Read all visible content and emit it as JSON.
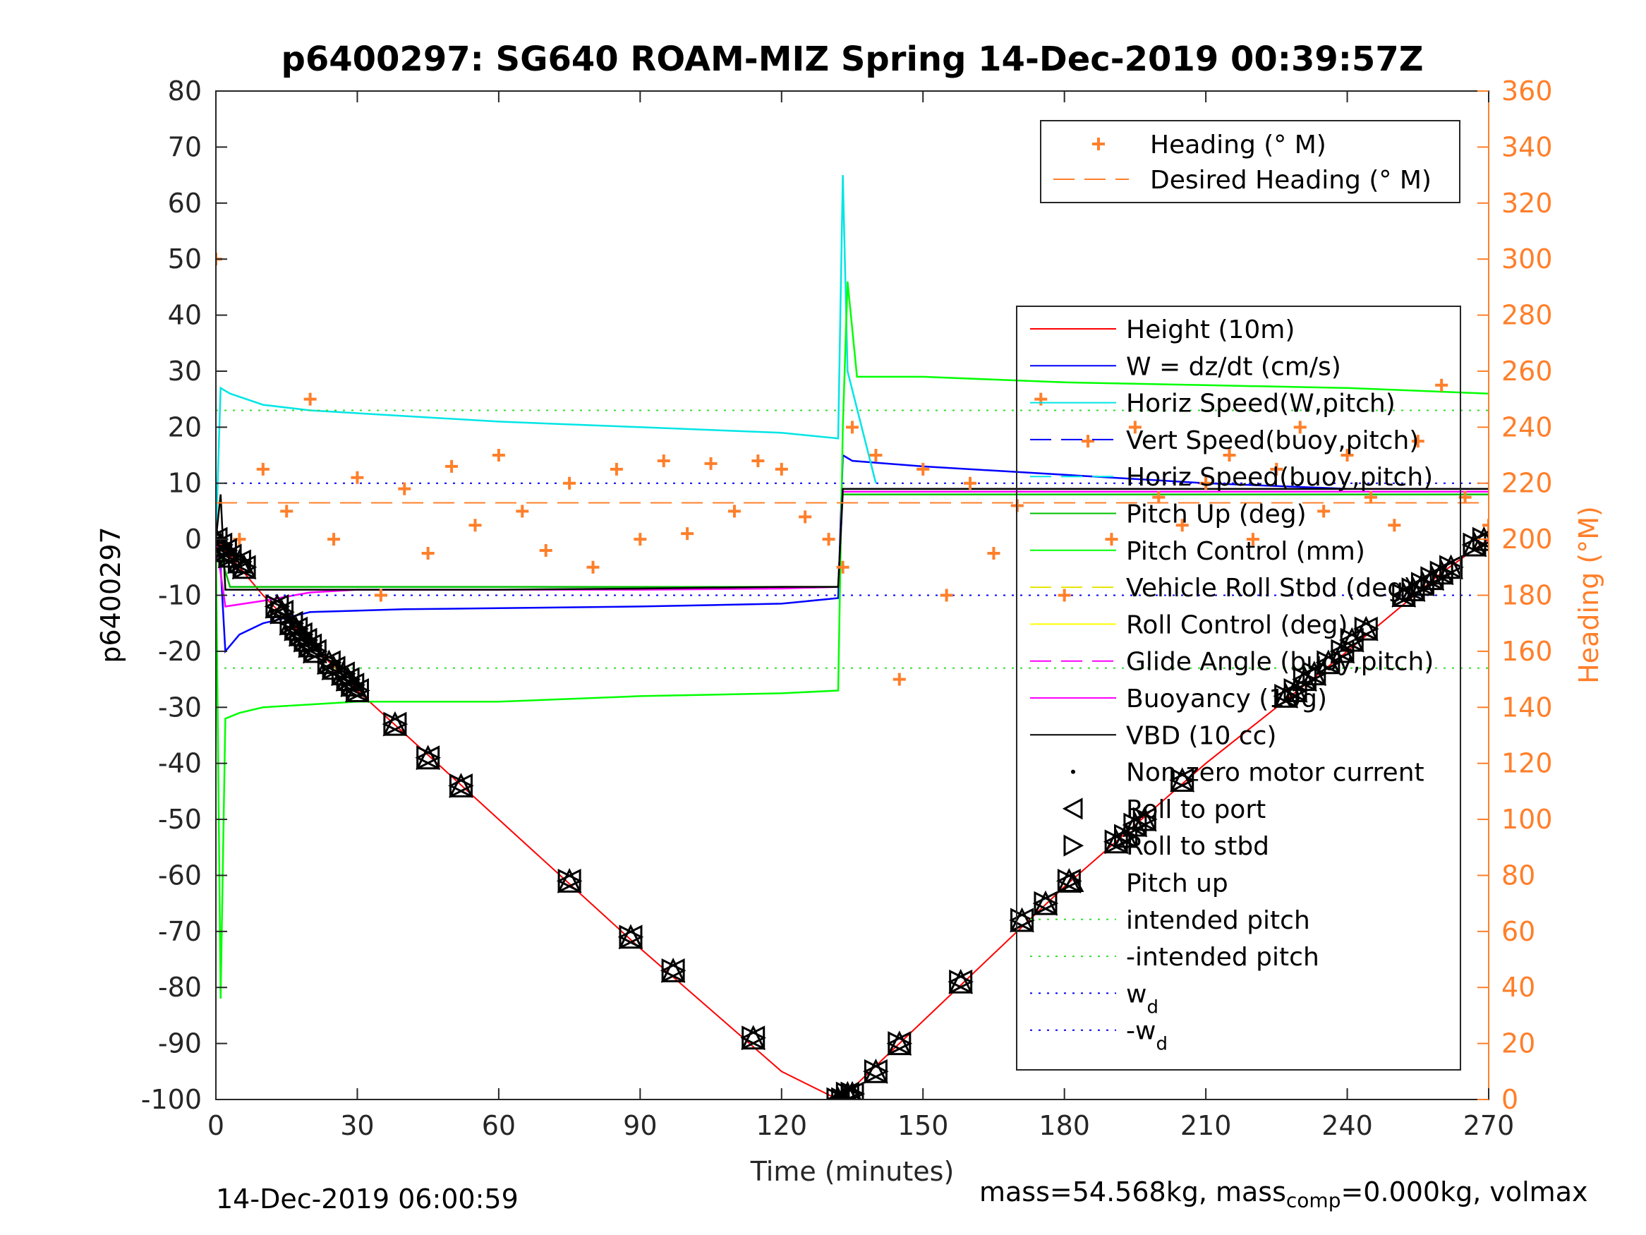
{
  "chart_data": {
    "type": "line",
    "title": "p6400297: SG640 ROAM-MIZ Spring 14-Dec-2019 00:39:57Z",
    "xlabel": "Time (minutes)",
    "ylabel_left": "p6400297",
    "ylabel_right": "Heading (°M)",
    "xlim": [
      0,
      270
    ],
    "ylim_left": [
      -100,
      80
    ],
    "ylim_right": [
      0,
      360
    ],
    "xticks": [
      "0",
      "30",
      "60",
      "90",
      "120",
      "150",
      "180",
      "210",
      "240",
      "270"
    ],
    "yticks_left": [
      "80",
      "70",
      "60",
      "50",
      "40",
      "30",
      "20",
      "10",
      "0",
      "-10",
      "-20",
      "-30",
      "-40",
      "-50",
      "-60",
      "-70",
      "-80",
      "-90",
      "-100"
    ],
    "yticks_right": [
      "360",
      "340",
      "320",
      "300",
      "280",
      "260",
      "240",
      "220",
      "200",
      "180",
      "160",
      "140",
      "120",
      "100",
      "80",
      "60",
      "40",
      "20",
      "0"
    ],
    "grid": false,
    "legend_heading": {
      "placement": "top-right",
      "entries": [
        {
          "label": "Heading (° M)",
          "color": "#ff7f2a",
          "style": "plus"
        },
        {
          "label": "Desired Heading (° M)",
          "color": "#ff7f2a",
          "style": "dashed"
        }
      ]
    },
    "legend_main": {
      "placement": "right",
      "entries": [
        {
          "label": "Height (10m)",
          "color": "#ff0000",
          "style": "solid"
        },
        {
          "label": "W = dz/dt (cm/s)",
          "color": "#0000ff",
          "style": "solid"
        },
        {
          "label": "Horiz Speed(W,pitch)",
          "color": "#00e5e5",
          "style": "solid"
        },
        {
          "label": "Vert Speed(buoy,pitch)",
          "color": "#0000ff",
          "style": "dashed"
        },
        {
          "label": "Horiz Speed(buoy,pitch)",
          "color": "#00e5e5",
          "style": "dashed"
        },
        {
          "label": "Pitch Up (deg)",
          "color": "#00c000",
          "style": "solid"
        },
        {
          "label": "Pitch Control (mm)",
          "color": "#00ff00",
          "style": "solid"
        },
        {
          "label": "Vehicle Roll Stbd (deg)",
          "color": "#e5e500",
          "style": "dashed"
        },
        {
          "label": "Roll Control (deg)",
          "color": "#ffff00",
          "style": "solid"
        },
        {
          "label": "Glide Angle (buoy,pitch)",
          "color": "#ff00ff",
          "style": "dashed"
        },
        {
          "label": "Buoyancy (10g)",
          "color": "#ff00ff",
          "style": "solid"
        },
        {
          "label": "VBD (10 cc)",
          "color": "#000000",
          "style": "solid"
        },
        {
          "label": "Non-zero motor current",
          "color": "#000000",
          "style": "dot"
        },
        {
          "label": "Roll to port",
          "color": "#000000",
          "style": "tri-left"
        },
        {
          "label": "Roll to stbd",
          "color": "#000000",
          "style": "tri-right"
        },
        {
          "label": "Pitch up",
          "color": "#000000",
          "style": "tri-up"
        },
        {
          "label": "intended pitch",
          "color": "#33dd33",
          "style": "dotted"
        },
        {
          "label": "-intended pitch",
          "color": "#33dd33",
          "style": "dotted"
        },
        {
          "label": "w",
          "sub": "d",
          "color": "#0000ff",
          "style": "dotted"
        },
        {
          "label": "-w",
          "sub": "d",
          "color": "#0000ff",
          "style": "dotted"
        }
      ]
    },
    "series": [
      {
        "name": "Height (10m)",
        "color": "#ff0000",
        "x": [
          0,
          5,
          10,
          30,
          60,
          90,
          120,
          132,
          135,
          145,
          160,
          180,
          210,
          240,
          260,
          270
        ],
        "values": [
          0,
          -5,
          -10,
          -27,
          -50,
          -73,
          -95,
          -100,
          -98,
          -90,
          -78,
          -62,
          -40,
          -20,
          -6,
          0
        ]
      },
      {
        "name": "W = dz/dt (cm/s)",
        "color": "#0000ff",
        "x": [
          0,
          1,
          2,
          5,
          10,
          20,
          40,
          60,
          90,
          120,
          132,
          133,
          135,
          150,
          180,
          210,
          240,
          270
        ],
        "values": [
          0,
          -5,
          -20,
          -17,
          -15,
          -13,
          -12.5,
          -12.3,
          -12,
          -11.5,
          -10.5,
          15,
          14,
          13,
          11.5,
          10,
          9,
          9
        ]
      },
      {
        "name": "Horiz Speed(W,pitch)",
        "color": "#00e5e5",
        "x": [
          0,
          1,
          3,
          10,
          20,
          40,
          60,
          90,
          120,
          132,
          133,
          134,
          140
        ],
        "values": [
          0,
          27,
          26,
          24,
          23,
          22,
          21,
          20,
          19,
          18,
          65,
          30,
          10
        ]
      },
      {
        "name": "Pitch Control (mm)",
        "color": "#00ff00",
        "x": [
          0,
          1,
          2,
          5,
          10,
          30,
          60,
          90,
          120,
          132,
          133,
          134,
          136,
          150,
          180,
          210,
          240,
          270
        ],
        "values": [
          0,
          -82,
          -32,
          -31,
          -30,
          -29,
          -29,
          -28,
          -27.5,
          -27,
          20,
          46,
          29,
          29,
          28,
          27.5,
          27,
          26
        ]
      },
      {
        "name": "Pitch Up (deg)",
        "color": "#00c000",
        "x": [
          0,
          3,
          30,
          60,
          90,
          120,
          132,
          133,
          150,
          180,
          210,
          240,
          270
        ],
        "values": [
          0,
          -8.5,
          -8.5,
          -8.5,
          -8.5,
          -8.5,
          -8.5,
          8,
          8,
          8,
          8,
          8,
          8
        ]
      },
      {
        "name": "Buoyancy (10g)",
        "color": "#ff00ff",
        "x": [
          0,
          2,
          10,
          20,
          30,
          60,
          90,
          120,
          132,
          133,
          150,
          180,
          210,
          240,
          270
        ],
        "values": [
          0,
          -12,
          -11,
          -9.5,
          -9,
          -9,
          -9,
          -8.8,
          -8.5,
          8.5,
          8.5,
          8.5,
          8.5,
          8.5,
          8.5
        ]
      },
      {
        "name": "VBD (10 cc)",
        "color": "#000000",
        "x": [
          0,
          1,
          2,
          5,
          30,
          60,
          90,
          120,
          132,
          133,
          135,
          180,
          210,
          240,
          270
        ],
        "values": [
          0,
          8,
          -9,
          -9,
          -9,
          -9,
          -8.8,
          -8.5,
          -8.5,
          9,
          9,
          9,
          9,
          9,
          9
        ]
      },
      {
        "name": "Heading (° M)",
        "color": "#ff7f2a",
        "axis": "right",
        "x": [
          0,
          5,
          10,
          15,
          20,
          25,
          30,
          35,
          40,
          45,
          50,
          55,
          60,
          65,
          70,
          75,
          80,
          85,
          90,
          95,
          100,
          105,
          110,
          115,
          120,
          125,
          130,
          133,
          135,
          140,
          145,
          150,
          155,
          160,
          165,
          170,
          175,
          180,
          185,
          190,
          195,
          200,
          205,
          210,
          215,
          220,
          225,
          230,
          235,
          240,
          245,
          250,
          255,
          260,
          265,
          270
        ],
        "values": [
          300,
          200,
          225,
          210,
          250,
          200,
          222,
          180,
          218,
          195,
          226,
          205,
          230,
          210,
          196,
          220,
          190,
          225,
          200,
          228,
          202,
          227,
          210,
          228,
          225,
          208,
          200,
          190,
          240,
          230,
          150,
          225,
          180,
          220,
          195,
          212,
          250,
          180,
          235,
          200,
          240,
          215,
          205,
          220,
          230,
          200,
          225,
          240,
          210,
          230,
          215,
          205,
          235,
          255,
          215,
          205
        ]
      },
      {
        "name": "Desired Heading (° M)",
        "color": "#ff7f2a",
        "axis": "right",
        "x": [
          0,
          270
        ],
        "values": [
          213,
          213
        ]
      }
    ],
    "reference_lines": [
      {
        "name": "intended pitch",
        "value": 23
      },
      {
        "name": "-intended pitch",
        "value": -23
      },
      {
        "name": "w_d",
        "value": 10
      },
      {
        "name": "-w_d",
        "value": -10
      }
    ],
    "markers": {
      "x": [
        0,
        1,
        2,
        3,
        5,
        6,
        13,
        14,
        16,
        17,
        18,
        19,
        20,
        21,
        24,
        25,
        27,
        28,
        29,
        30,
        38,
        45,
        52,
        75,
        88,
        97,
        114,
        132,
        133,
        134,
        135,
        140,
        145,
        158,
        171,
        176,
        181,
        191,
        193,
        195,
        197,
        205,
        227,
        229,
        231,
        233,
        236,
        239,
        241,
        244,
        252,
        254,
        256,
        258,
        260,
        262,
        267,
        269
      ],
      "values": [
        0,
        -1,
        -2,
        -3,
        -4,
        -5,
        -12,
        -13,
        -15,
        -16,
        -17,
        -18,
        -19,
        -20,
        -22,
        -23,
        -24,
        -25,
        -26,
        -27,
        -33,
        -39,
        -44,
        -61,
        -71,
        -77,
        -89,
        -100,
        -100,
        -99,
        -99,
        -95,
        -90,
        -79,
        -68,
        -65,
        -61,
        -54,
        -53,
        -51,
        -50,
        -43,
        -28,
        -27,
        -25,
        -24,
        -22,
        -20,
        -18,
        -16,
        -10,
        -9,
        -8,
        -7,
        -6,
        -5,
        -1,
        0
      ]
    },
    "footer": {
      "left": "14-Dec-2019 06:00:59",
      "right_a": "mass=54.568kg, mass",
      "right_sub": "comp",
      "right_b": "=0.000kg, volmax"
    }
  }
}
